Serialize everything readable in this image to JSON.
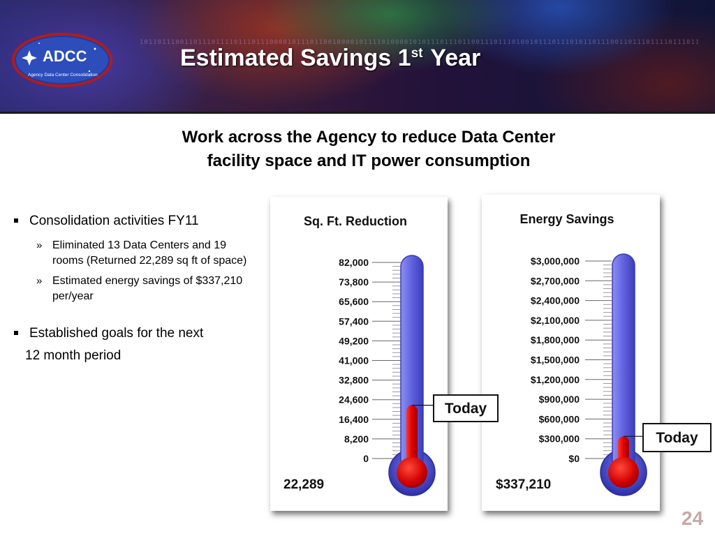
{
  "header": {
    "logo_text": "ADCC",
    "logo_subtitle": "Agency Data Center Consolidation",
    "title_prefix": "Estimated Savings 1",
    "title_sup": "st",
    "title_suffix": " Year"
  },
  "subtitle_line1": "Work across the Agency to reduce Data Center",
  "subtitle_line2": "facility space and IT power consumption",
  "bullets": {
    "item1": "Consolidation activities FY11",
    "sub1": "Eliminated 13 Data Centers and 19 rooms (Returned 22,289 sq ft of space)",
    "sub2": "Estimated energy savings of $337,210 per/year",
    "item2": "Established goals for the next",
    "item2_cont": "12 month period"
  },
  "colors": {
    "mercury": "#e00000",
    "tube": "#6c6fe6",
    "bulb": "#3c3cc8"
  },
  "chart_data": [
    {
      "type": "thermometer",
      "title": "Sq. Ft. Reduction",
      "ticks": [
        "82,000",
        "73,800",
        "65,600",
        "57,400",
        "49,200",
        "41,000",
        "32,800",
        "24,600",
        "16,400",
        "8,200",
        "0"
      ],
      "ylim": [
        0,
        82000
      ],
      "value": 22289,
      "value_label": "22,289",
      "marker_label": "Today"
    },
    {
      "type": "thermometer",
      "title": "Energy Savings",
      "ticks": [
        "$3,000,000",
        "$2,700,000",
        "$2,400,000",
        "$2,100,000",
        "$1,800,000",
        "$1,500,000",
        "$1,200,000",
        "$900,000",
        "$600,000",
        "$300,000",
        "$0"
      ],
      "ylim": [
        0,
        3000000
      ],
      "value": 337210,
      "value_label": "$337,210",
      "marker_label": "Today"
    }
  ],
  "page_number": "24"
}
